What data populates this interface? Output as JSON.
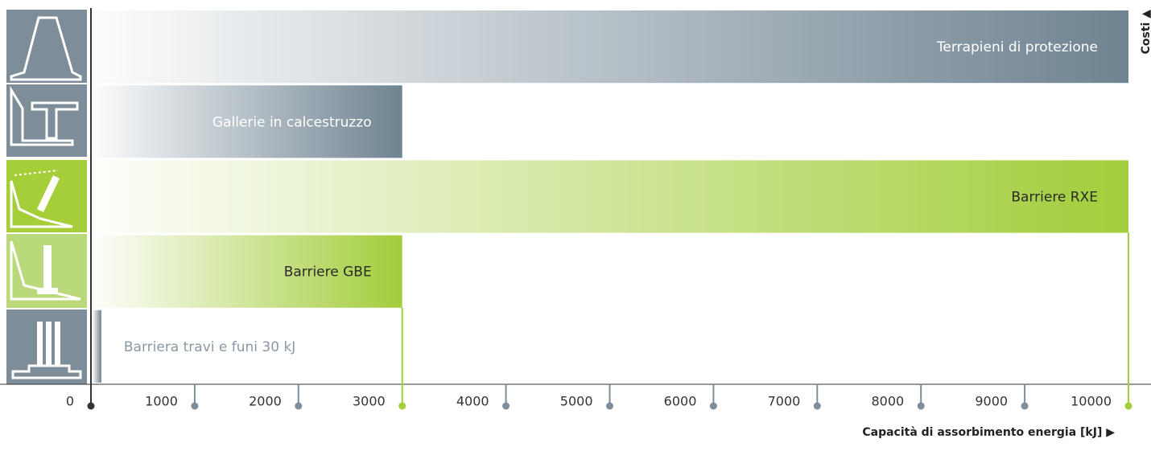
{
  "chart_data": {
    "type": "bar",
    "orientation": "horizontal",
    "categories": [
      "Terrapieni di protezione",
      "Gallerie in calcestruzzo",
      "Barriere RXE",
      "Barriere GBE",
      "Barriera travi e funi 30 kJ"
    ],
    "values": [
      10000,
      3000,
      10000,
      3000,
      100
    ],
    "colors": [
      "#6f8391",
      "#6f8391",
      "#a3cd3b",
      "#a3cd3b",
      "#6f8391"
    ],
    "xlim": [
      0,
      10000
    ],
    "xticks": [
      0,
      1000,
      2000,
      3000,
      4000,
      5000,
      6000,
      7000,
      8000,
      9000,
      10000
    ],
    "x_label": "Capacità di assorbimento energia [kJ] ▶",
    "y_label": "Costi ▲"
  }
}
